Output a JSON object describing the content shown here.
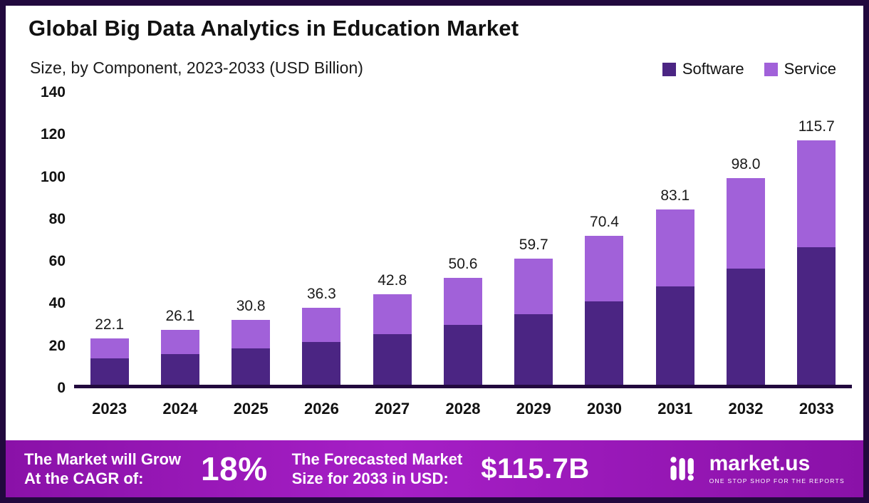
{
  "chart_data": {
    "type": "bar",
    "stacked": true,
    "title": "Global Big Data Analytics in Education Market",
    "subtitle": "Size, by Component, 2023-2033 (USD Billion)",
    "categories": [
      "2023",
      "2024",
      "2025",
      "2026",
      "2027",
      "2028",
      "2029",
      "2030",
      "2031",
      "2032",
      "2033"
    ],
    "series": [
      {
        "name": "Software",
        "color": "#4b2583",
        "values": [
          12.5,
          14.6,
          17.3,
          20.3,
          23.8,
          28.2,
          33.3,
          39.4,
          46.6,
          55.1,
          65.1
        ]
      },
      {
        "name": "Service",
        "color": "#a161d9",
        "values": [
          9.6,
          11.5,
          13.5,
          16.0,
          19.0,
          22.4,
          26.4,
          31.0,
          36.5,
          42.9,
          50.6
        ]
      }
    ],
    "totals": [
      "22.1",
      "26.1",
      "30.8",
      "36.3",
      "42.8",
      "50.6",
      "59.7",
      "70.4",
      "83.1",
      "98.0",
      "115.7"
    ],
    "xlabel": "",
    "ylabel": "",
    "ylim": [
      0,
      140
    ],
    "yticks": [
      0,
      20,
      40,
      60,
      80,
      100,
      120,
      140
    ],
    "grid": false,
    "legend_position": "top-right"
  },
  "footer": {
    "cagr_label": "The Market will Grow\nAt the CAGR of:",
    "cagr_value": "18%",
    "forecast_label": "The Forecasted Market\nSize for 2033 in USD:",
    "forecast_value": "$115.7B",
    "brand": "market.us",
    "brand_tagline": "ONE STOP SHOP FOR THE REPORTS"
  },
  "colors": {
    "frame": "#22093e",
    "background": "#ffffff",
    "software": "#4b2583",
    "service": "#a161d9",
    "banner_gradient_start": "#8a11a8",
    "banner_gradient_mid": "#a61fc6",
    "banner_gradient_end": "#8a11a8",
    "text": "#111111"
  }
}
